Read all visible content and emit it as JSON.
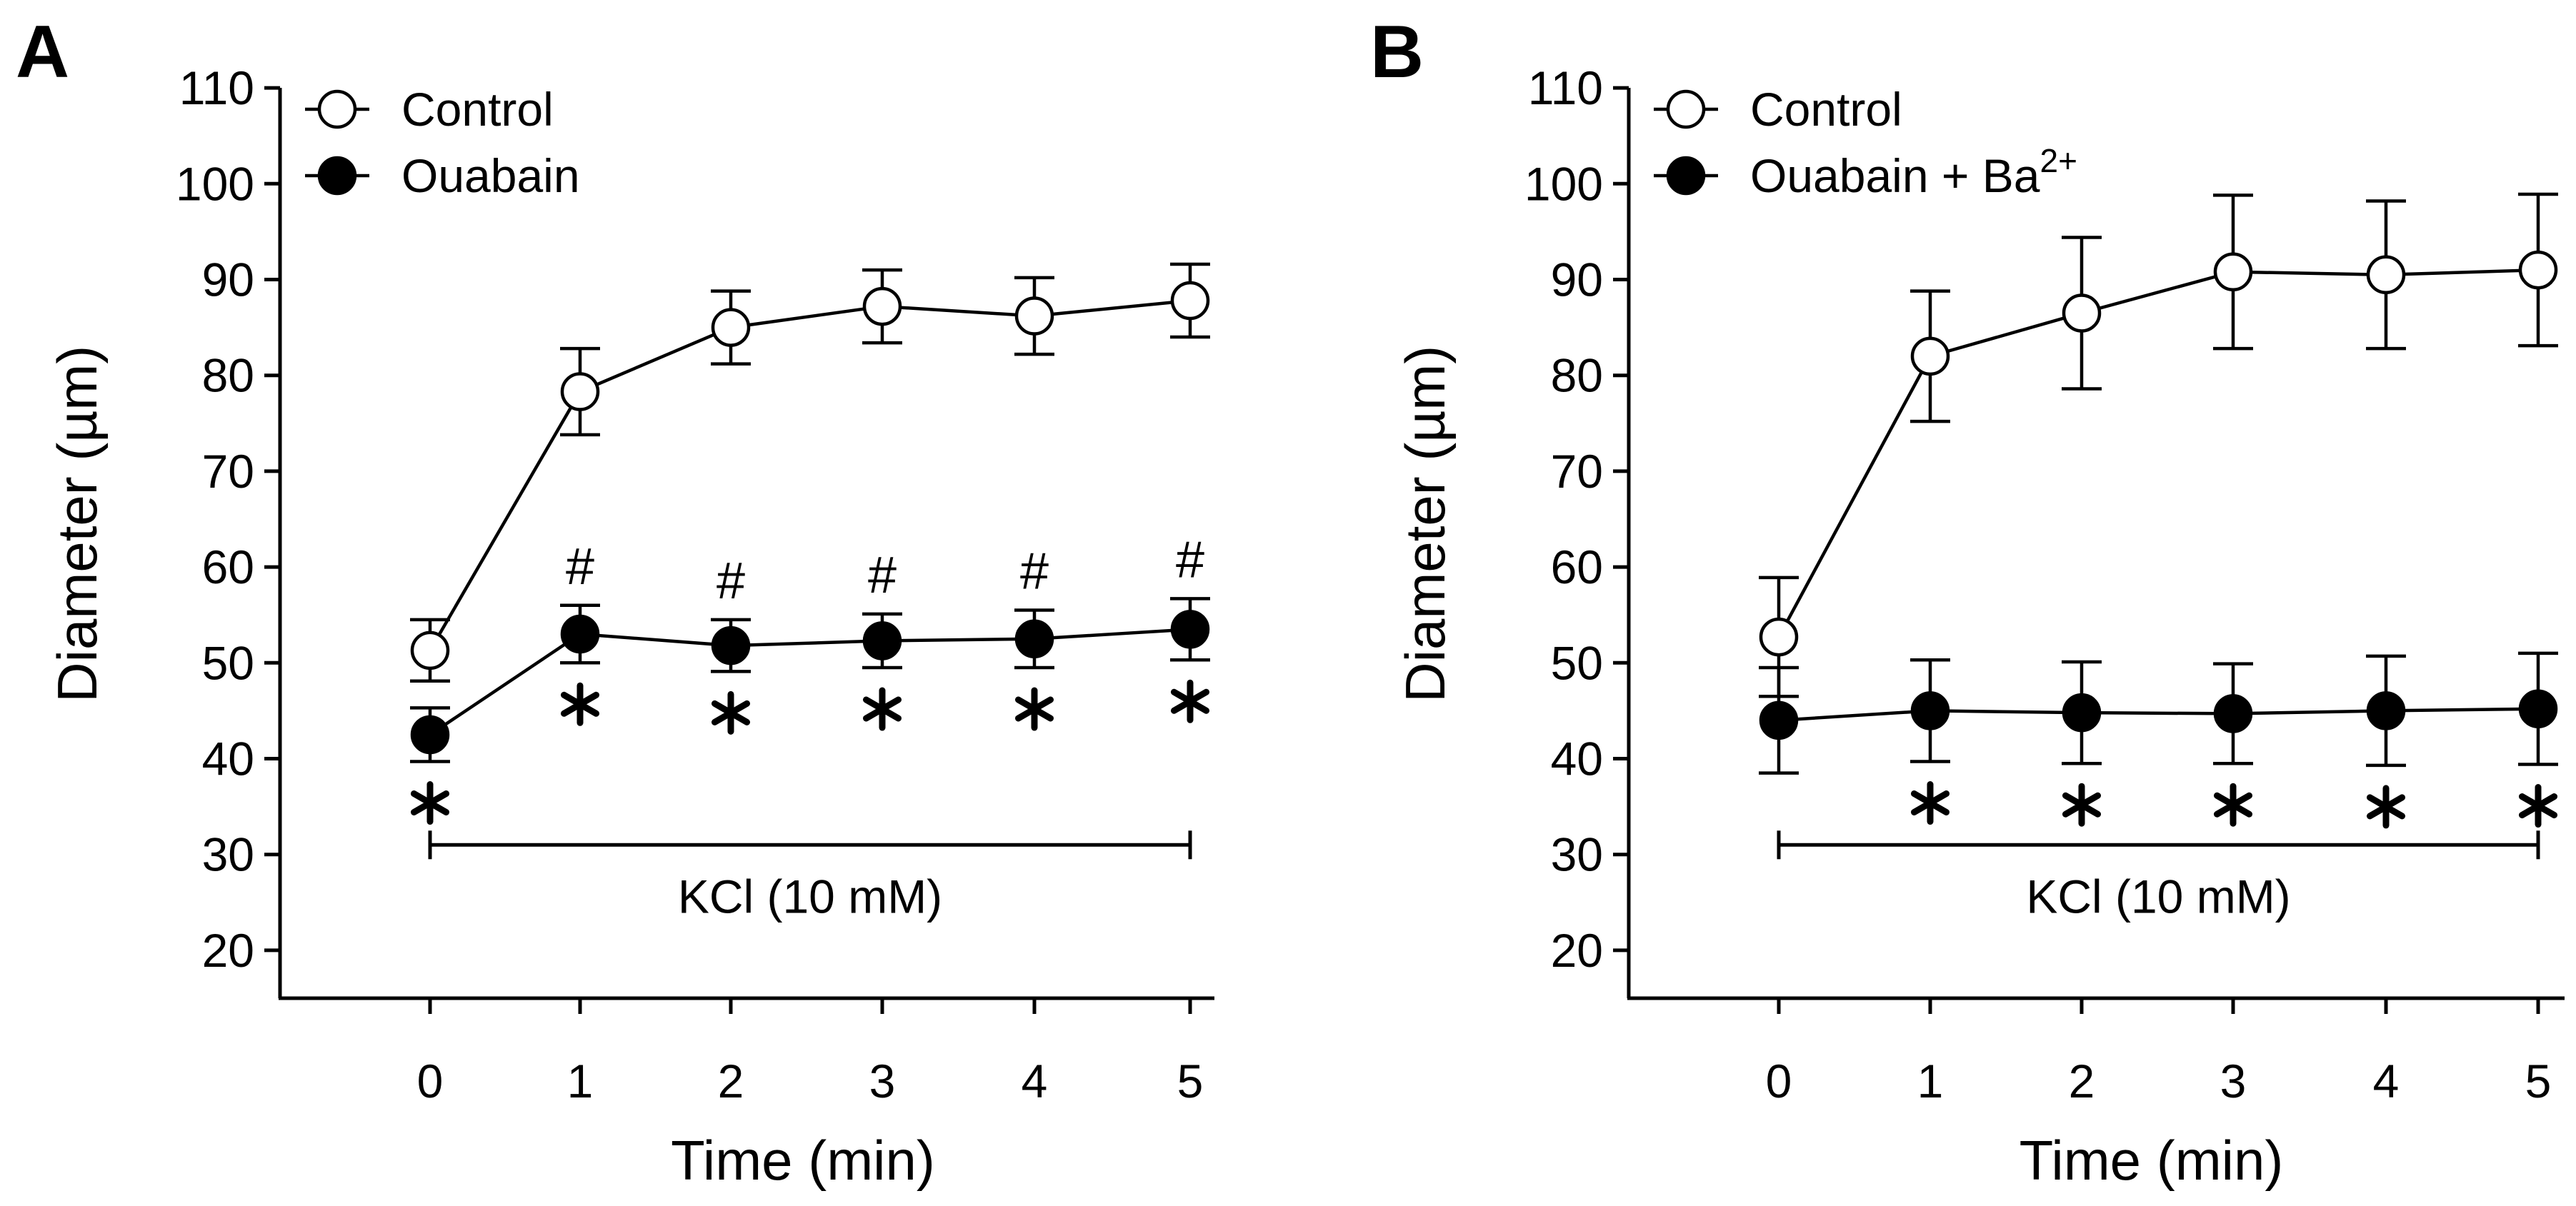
{
  "chart_data": [
    {
      "panel": "A",
      "type": "line",
      "xlabel": "Time (min)",
      "ylabel": "Diameter (µm)",
      "x": [
        0,
        1,
        2,
        3,
        4,
        5
      ],
      "x_tick_labels": [
        "0",
        "1",
        "2",
        "3",
        "4",
        "5"
      ],
      "y_tick_labels": [
        "20",
        "30",
        "40",
        "50",
        "60",
        "70",
        "80",
        "90",
        "100",
        "110"
      ],
      "xlim": [
        -1,
        5
      ],
      "ylim": [
        15,
        110
      ],
      "legend_position": "top-left",
      "series": [
        {
          "name": "Control",
          "marker": "open-circle",
          "values": [
            51.3,
            78.3,
            85.0,
            87.2,
            86.2,
            87.8
          ],
          "errors": [
            3.2,
            4.5,
            3.8,
            3.8,
            4.0,
            3.8
          ]
        },
        {
          "name": "Ouabain",
          "marker": "filled-circle",
          "values": [
            42.5,
            53.0,
            51.8,
            52.3,
            52.5,
            53.5
          ],
          "errors": [
            2.8,
            3.0,
            2.7,
            2.8,
            3.0,
            3.2
          ]
        }
      ],
      "annotations": {
        "hash_symbol": "#",
        "hash_at_x": [
          1,
          2,
          3,
          4,
          5
        ],
        "star_symbol": "*",
        "star_at_x": [
          0,
          1,
          2,
          3,
          4,
          5
        ],
        "treatment_bar": {
          "label": "KCl (10 mM)",
          "x_start": 0,
          "x_end": 5,
          "y": 31
        }
      }
    },
    {
      "panel": "B",
      "type": "line",
      "xlabel": "Time (min)",
      "ylabel": "Diameter (µm)",
      "x": [
        0,
        1,
        2,
        3,
        4,
        5
      ],
      "x_tick_labels": [
        "0",
        "1",
        "2",
        "3",
        "4",
        "5"
      ],
      "y_tick_labels": [
        "20",
        "30",
        "40",
        "50",
        "60",
        "70",
        "80",
        "90",
        "100",
        "110"
      ],
      "xlim": [
        -1,
        5
      ],
      "ylim": [
        15,
        110
      ],
      "legend_position": "top-left",
      "series": [
        {
          "name": "Control",
          "marker": "open-circle",
          "values": [
            52.7,
            82.0,
            86.5,
            90.8,
            90.5,
            91.0
          ],
          "errors": [
            6.2,
            6.8,
            7.9,
            8.0,
            7.7,
            7.9
          ]
        },
        {
          "name": "Ouabain + Ba",
          "name_superscript": "2+",
          "marker": "filled-circle",
          "values": [
            44.0,
            45.0,
            44.8,
            44.7,
            45.0,
            45.2
          ],
          "errors": [
            5.5,
            5.3,
            5.3,
            5.2,
            5.7,
            5.8
          ]
        }
      ],
      "annotations": {
        "star_symbol": "*",
        "star_at_x": [
          1,
          2,
          3,
          4,
          5
        ],
        "treatment_bar": {
          "label": "KCl (10 mM)",
          "x_start": 0,
          "x_end": 5,
          "y": 31
        }
      }
    }
  ]
}
